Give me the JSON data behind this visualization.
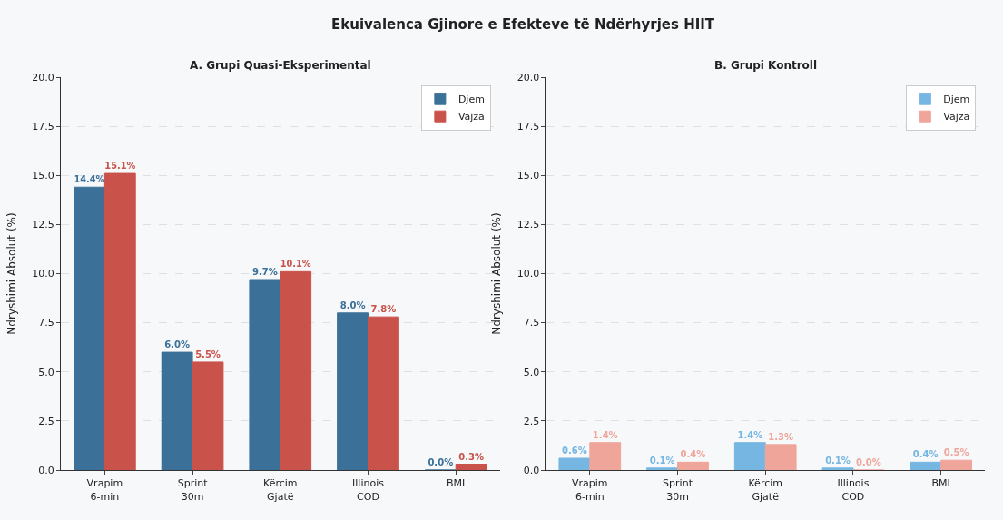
{
  "chart_data": [
    {
      "type": "bar",
      "title": "A. Grupi Quasi-Eksperimental",
      "ylabel": "Ndryshimi Absolut (%)",
      "annotations": [
        "Ekuivalenca Gjinore e Efekteve të Ndërhyrjes HIIT"
      ],
      "categories": [
        "Vrapim\n6-min",
        "Sprint\n30m",
        "Kërcim\nGjatë",
        "Illinois\nCOD",
        "BMI"
      ],
      "series": [
        {
          "name": "Djem",
          "color": "#3b7199",
          "values": [
            14.4,
            6.0,
            9.7,
            8.0,
            0.0
          ],
          "value_labels": [
            "14.4%",
            "6.0%",
            "9.7%",
            "8.0%",
            "0.0%"
          ]
        },
        {
          "name": "Vajza",
          "color": "#c9524a",
          "values": [
            15.1,
            5.5,
            10.1,
            7.8,
            0.3
          ],
          "value_labels": [
            "15.1%",
            "5.5%",
            "10.1%",
            "7.8%",
            "0.3%"
          ]
        }
      ],
      "ylim": [
        0,
        20
      ],
      "yticks": [
        {
          "value": 0,
          "label": "0.0"
        },
        {
          "value": 2.5,
          "label": "2.5"
        },
        {
          "value": 5,
          "label": "5.0"
        },
        {
          "value": 7.5,
          "label": "7.5"
        },
        {
          "value": 10,
          "label": "10.0"
        },
        {
          "value": 12.5,
          "label": "12.5"
        },
        {
          "value": 15,
          "label": "15.0"
        },
        {
          "value": 17.5,
          "label": "17.5"
        },
        {
          "value": 20,
          "label": "20.0"
        }
      ],
      "grid": "y",
      "legend": "top right"
    },
    {
      "type": "bar",
      "title": "B. Grupi Kontroll",
      "ylabel": "Ndryshimi Absolut (%)",
      "categories": [
        "Vrapim\n6-min",
        "Sprint\n30m",
        "Kërcim\nGjatë",
        "Illinois\nCOD",
        "BMI"
      ],
      "series": [
        {
          "name": "Djem",
          "color": "#76b6e2",
          "values": [
            0.6,
            0.1,
            1.4,
            0.1,
            0.4
          ],
          "value_labels": [
            "0.6%",
            "0.1%",
            "1.4%",
            "0.1%",
            "0.4%"
          ]
        },
        {
          "name": "Vajza",
          "color": "#f0a59b",
          "values": [
            1.4,
            0.4,
            1.3,
            0.0,
            0.5
          ],
          "value_labels": [
            "1.4%",
            "0.4%",
            "1.3%",
            "0.0%",
            "0.5%"
          ]
        }
      ],
      "ylim": [
        0,
        20
      ],
      "yticks": [
        {
          "value": 0,
          "label": "0.0"
        },
        {
          "value": 2.5,
          "label": "2.5"
        },
        {
          "value": 5,
          "label": "5.0"
        },
        {
          "value": 7.5,
          "label": "7.5"
        },
        {
          "value": 10,
          "label": "10.0"
        },
        {
          "value": 12.5,
          "label": "12.5"
        },
        {
          "value": 15,
          "label": "15.0"
        },
        {
          "value": 17.5,
          "label": "17.5"
        },
        {
          "value": 20,
          "label": "20.0"
        }
      ],
      "grid": "y",
      "legend": "top right"
    }
  ]
}
